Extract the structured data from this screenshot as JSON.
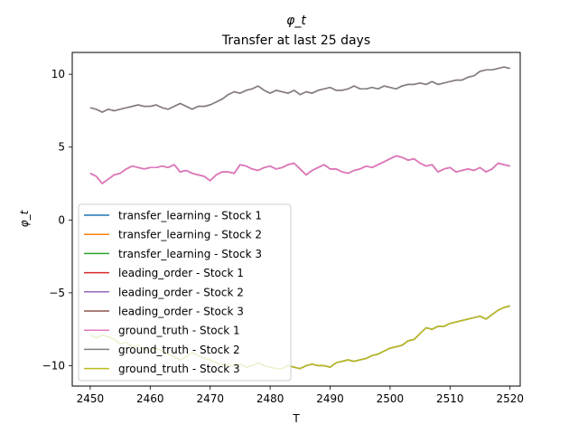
{
  "chart_data": {
    "type": "line",
    "title": "φ_t",
    "subtitle": "Transfer at last 25 days",
    "xlabel": "T",
    "ylabel": "φ_t",
    "xlim": [
      2447,
      2521.7
    ],
    "ylim": [
      -11.4,
      11.5
    ],
    "xticks": [
      2450,
      2460,
      2470,
      2480,
      2490,
      2500,
      2510,
      2520
    ],
    "yticks": [
      -10,
      -5,
      0,
      5,
      10
    ],
    "grid": false,
    "legend_position": "lower-left",
    "x_start": 2450,
    "x_end": 2520,
    "series": [
      {
        "name": "transfer_learning - Stock 1",
        "color": "#1f77b4",
        "group": "mid",
        "values": [
          3.2,
          3.0,
          2.5,
          2.8,
          3.1,
          3.2,
          3.5,
          3.7,
          3.6,
          3.5,
          3.6,
          3.6,
          3.7,
          3.6,
          3.8,
          3.3,
          3.4,
          3.2,
          3.1,
          3.0,
          2.7,
          3.1,
          3.3,
          3.3,
          3.2,
          3.8,
          3.7,
          3.5,
          3.4,
          3.6,
          3.7,
          3.5,
          3.6,
          3.8,
          3.9,
          3.5,
          3.1,
          3.4,
          3.6,
          3.8,
          3.5,
          3.5,
          3.3,
          3.2,
          3.4,
          3.5,
          3.7,
          3.6,
          3.8,
          4.0,
          4.2,
          4.4,
          4.3,
          4.1,
          4.2,
          3.9,
          3.7,
          3.8,
          3.3,
          3.5,
          3.6,
          3.3,
          3.4,
          3.5,
          3.4,
          3.6,
          3.3,
          3.5,
          3.9,
          3.8,
          3.7
        ]
      },
      {
        "name": "transfer_learning - Stock 2",
        "color": "#ff7f0e",
        "group": "top",
        "values": [
          7.7,
          7.6,
          7.4,
          7.6,
          7.5,
          7.6,
          7.7,
          7.8,
          7.9,
          7.8,
          7.8,
          7.9,
          7.7,
          7.6,
          7.8,
          8.0,
          7.8,
          7.6,
          7.8,
          7.8,
          7.9,
          8.1,
          8.3,
          8.6,
          8.8,
          8.7,
          8.9,
          9.0,
          9.2,
          8.9,
          8.7,
          8.9,
          8.8,
          8.7,
          8.9,
          8.6,
          8.8,
          8.7,
          8.9,
          9.0,
          9.1,
          8.9,
          8.9,
          9.0,
          9.2,
          9.0,
          9.0,
          9.1,
          9.0,
          9.2,
          9.1,
          9.0,
          9.2,
          9.3,
          9.3,
          9.4,
          9.3,
          9.5,
          9.3,
          9.4,
          9.5,
          9.6,
          9.6,
          9.8,
          9.9,
          10.2,
          10.3,
          10.3,
          10.4,
          10.5,
          10.4
        ]
      },
      {
        "name": "transfer_learning - Stock 3",
        "color": "#2ca02c",
        "group": "bottom",
        "values": [
          -7.9,
          -8.1,
          -7.9,
          -8.0,
          -8.2,
          -8.5,
          -8.4,
          -8.7,
          -8.6,
          -8.9,
          -9.0,
          -8.8,
          -9.0,
          -9.2,
          -9.4,
          -9.6,
          -9.4,
          -9.1,
          -9.3,
          -9.5,
          -9.6,
          -9.8,
          -9.9,
          -10.0,
          -10.0,
          -9.9,
          -10.1,
          -10.0,
          -9.8,
          -10.0,
          -10.1,
          -10.2,
          -10.2,
          -10.0,
          -10.1,
          -10.2,
          -10.0,
          -9.9,
          -10.0,
          -10.0,
          -10.1,
          -9.8,
          -9.7,
          -9.6,
          -9.7,
          -9.6,
          -9.5,
          -9.3,
          -9.2,
          -9.0,
          -8.8,
          -8.7,
          -8.6,
          -8.3,
          -8.2,
          -7.8,
          -7.4,
          -7.5,
          -7.3,
          -7.3,
          -7.1,
          -7.0,
          -6.9,
          -6.8,
          -6.7,
          -6.6,
          -6.8,
          -6.5,
          -6.2,
          -6.0,
          -5.9
        ]
      },
      {
        "name": "leading_order - Stock 1",
        "color": "#d62728",
        "group": "mid"
      },
      {
        "name": "leading_order - Stock 2",
        "color": "#9467bd",
        "group": "top"
      },
      {
        "name": "leading_order - Stock 3",
        "color": "#8c564b",
        "group": "bottom"
      },
      {
        "name": "ground_truth - Stock 1",
        "color": "#e377c2",
        "group": "mid"
      },
      {
        "name": "ground_truth - Stock 2",
        "color": "#7f7f7f",
        "group": "top"
      },
      {
        "name": "ground_truth - Stock 3",
        "color": "#bcbd22",
        "group": "bottom"
      }
    ]
  }
}
